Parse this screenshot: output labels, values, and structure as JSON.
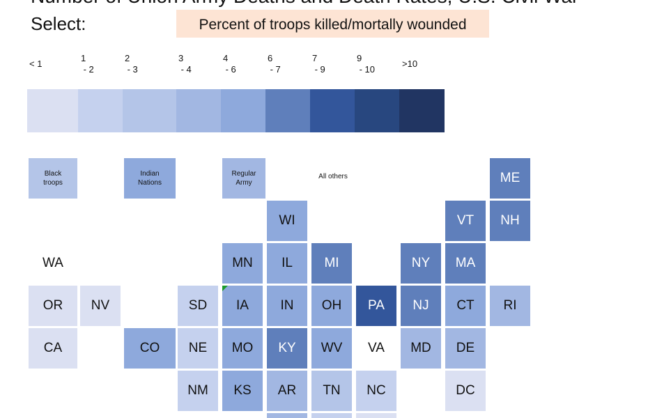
{
  "title": "Number of Union Army Deaths and Death Rates, U.S. Civil War",
  "select_label": "Select:",
  "selector": {
    "label": "Percent of troops killed/mortally wounded",
    "background": "#fde4d4"
  },
  "colors": {
    "no_data": "#ffffff",
    "light_text": "#ffffff",
    "dark_text": "#111111"
  },
  "chart_data": {
    "type": "heatmap",
    "title": "Number of Union Army Deaths and Death Rates, U.S. Civil War",
    "measure": "Percent of troops killed/mortally wounded",
    "legend": {
      "labels": [
        "< 1",
        "1\n - 2",
        "2\n - 3",
        "3\n - 4",
        "4\n - 6",
        "6\n - 7",
        "7\n - 9",
        "9\n - 10",
        ">10"
      ],
      "colors": [
        "#dbe0f2",
        "#c5d1ee",
        "#b4c5e8",
        "#a2b7e2",
        "#8ea9dc",
        "#5f7fbb",
        "#33569b",
        "#28477f",
        "#213562"
      ]
    },
    "groups": [
      {
        "name": "Black\ntroops",
        "bin": 2
      },
      {
        "name": "Indian\nNations",
        "bin": 4
      },
      {
        "name": "Regular\nArmy",
        "bin": 3
      },
      {
        "name": "All others",
        "bin": null
      }
    ],
    "states": [
      {
        "abbr": "ME",
        "bin": 5
      },
      {
        "abbr": "WI",
        "bin": 4
      },
      {
        "abbr": "VT",
        "bin": 5
      },
      {
        "abbr": "NH",
        "bin": 5
      },
      {
        "abbr": "WA",
        "bin": null
      },
      {
        "abbr": "MN",
        "bin": 4
      },
      {
        "abbr": "IL",
        "bin": 4
      },
      {
        "abbr": "MI",
        "bin": 5
      },
      {
        "abbr": "NY",
        "bin": 5
      },
      {
        "abbr": "MA",
        "bin": 5
      },
      {
        "abbr": "OR",
        "bin": 0
      },
      {
        "abbr": "NV",
        "bin": 0
      },
      {
        "abbr": "SD",
        "bin": 1
      },
      {
        "abbr": "IA",
        "bin": 4
      },
      {
        "abbr": "IN",
        "bin": 4
      },
      {
        "abbr": "OH",
        "bin": 4
      },
      {
        "abbr": "PA",
        "bin": 6
      },
      {
        "abbr": "NJ",
        "bin": 5
      },
      {
        "abbr": "CT",
        "bin": 4
      },
      {
        "abbr": "RI",
        "bin": 3
      },
      {
        "abbr": "CA",
        "bin": 0
      },
      {
        "abbr": "CO",
        "bin": 4
      },
      {
        "abbr": "NE",
        "bin": 1
      },
      {
        "abbr": "MO",
        "bin": 4
      },
      {
        "abbr": "KY",
        "bin": 5
      },
      {
        "abbr": "WV",
        "bin": 4
      },
      {
        "abbr": "VA",
        "bin": null
      },
      {
        "abbr": "MD",
        "bin": 3
      },
      {
        "abbr": "DE",
        "bin": 3
      },
      {
        "abbr": "NM",
        "bin": 1
      },
      {
        "abbr": "KS",
        "bin": 4
      },
      {
        "abbr": "AR",
        "bin": 3
      },
      {
        "abbr": "TN",
        "bin": 2
      },
      {
        "abbr": "NC",
        "bin": 1
      },
      {
        "abbr": "DC",
        "bin": 0
      },
      {
        "abbr": "",
        "bin": 3
      },
      {
        "abbr": "",
        "bin": 1
      },
      {
        "abbr": "",
        "bin": 0
      }
    ]
  }
}
